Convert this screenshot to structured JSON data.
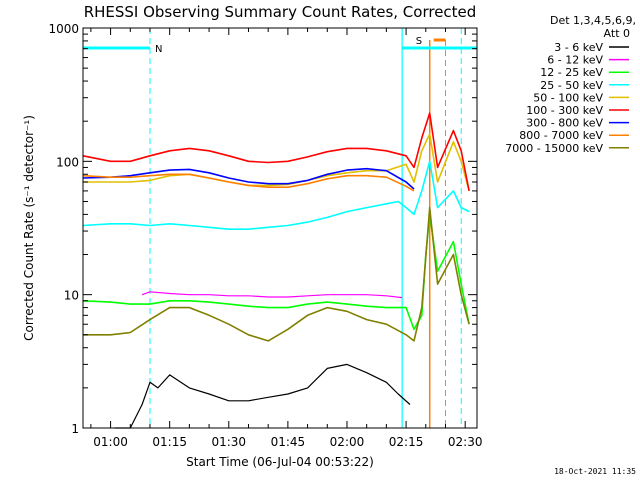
{
  "chart_data": {
    "type": "line",
    "title": "RHESSI Observing Summary Count Rates, Corrected",
    "xlabel": "Start Time (06-Jul-04 00:53:22)",
    "ylabel": "Corrected Count Rate (s⁻¹ detector⁻¹)",
    "yscale": "log",
    "ylim": [
      1,
      1000
    ],
    "xlim": [
      "00:53",
      "02:33"
    ],
    "x_ticks": [
      "01:00",
      "01:15",
      "01:30",
      "01:45",
      "02:00",
      "02:15",
      "02:30"
    ],
    "y_ticks": [
      "1",
      "10",
      "100",
      "1000"
    ],
    "legend_header": [
      "Det 1,3,4,5,6,9,",
      "Att 0"
    ],
    "legend_position": "right",
    "series": [
      {
        "name": "3 - 6 keV",
        "color": "#000000",
        "x": [
          "01:01",
          "01:05",
          "01:08",
          "01:10",
          "01:12",
          "01:15",
          "01:20",
          "01:25",
          "01:30",
          "01:35",
          "01:40",
          "01:45",
          "01:50",
          "01:55",
          "02:00",
          "02:05",
          "02:10",
          "02:13",
          "02:16"
        ],
        "y": [
          1,
          1,
          1.5,
          2.2,
          2.0,
          2.5,
          2.0,
          1.8,
          1.6,
          1.6,
          1.7,
          1.8,
          2.0,
          2.8,
          3.0,
          2.6,
          2.2,
          1.8,
          1.5
        ]
      },
      {
        "name": "6 - 12 keV",
        "color": "#ff00ff",
        "x": [
          "01:08",
          "01:10",
          "01:15",
          "01:20",
          "01:25",
          "01:30",
          "01:35",
          "01:40",
          "01:45",
          "01:50",
          "01:55",
          "02:00",
          "02:05",
          "02:10",
          "02:14"
        ],
        "y": [
          10,
          10.5,
          10.2,
          10,
          10,
          9.8,
          9.8,
          9.6,
          9.6,
          9.8,
          10,
          10,
          10,
          9.8,
          9.5
        ]
      },
      {
        "name": "12 - 25 keV",
        "color": "#00ff00",
        "x": [
          "00:53",
          "01:00",
          "01:05",
          "01:10",
          "01:15",
          "01:20",
          "01:25",
          "01:30",
          "01:35",
          "01:40",
          "01:45",
          "01:50",
          "01:55",
          "02:00",
          "02:05",
          "02:10",
          "02:15",
          "02:17",
          "02:19",
          "02:20",
          "02:21",
          "02:23",
          "02:27",
          "02:29",
          "02:31"
        ],
        "y": [
          9,
          8.8,
          8.5,
          8.5,
          9,
          9,
          8.8,
          8.5,
          8.2,
          8,
          8,
          8.5,
          8.8,
          8.5,
          8.2,
          8,
          8,
          5.5,
          7,
          20,
          40,
          15,
          25,
          12,
          6
        ]
      },
      {
        "name": "25 - 50 keV",
        "color": "#00ffff",
        "x": [
          "00:53",
          "01:00",
          "01:05",
          "01:10",
          "01:15",
          "01:20",
          "01:25",
          "01:30",
          "01:35",
          "01:40",
          "01:45",
          "01:50",
          "01:55",
          "02:00",
          "02:05",
          "02:10",
          "02:13",
          "02:15",
          "02:17",
          "02:19",
          "02:21",
          "02:23",
          "02:27",
          "02:29",
          "02:31"
        ],
        "y": [
          33,
          34,
          34,
          33,
          34,
          33,
          32,
          31,
          31,
          32,
          33,
          35,
          38,
          42,
          45,
          48,
          50,
          45,
          40,
          60,
          100,
          45,
          60,
          45,
          42
        ]
      },
      {
        "name": "50 - 100 keV",
        "color": "#e0c000",
        "x": [
          "00:53",
          "01:00",
          "01:05",
          "01:10",
          "01:15",
          "01:20",
          "01:25",
          "01:30",
          "01:35",
          "01:40",
          "01:45",
          "01:50",
          "01:55",
          "02:00",
          "02:05",
          "02:10",
          "02:15",
          "02:17",
          "02:19",
          "02:21",
          "02:23",
          "02:27",
          "02:29",
          "02:31"
        ],
        "y": [
          70,
          70,
          70,
          72,
          78,
          80,
          75,
          70,
          66,
          66,
          67,
          72,
          78,
          82,
          85,
          85,
          95,
          70,
          120,
          160,
          70,
          140,
          100,
          60
        ]
      },
      {
        "name": "100 - 300 keV",
        "color": "#ff0000",
        "x": [
          "00:53",
          "01:00",
          "01:05",
          "01:10",
          "01:15",
          "01:20",
          "01:25",
          "01:30",
          "01:35",
          "01:40",
          "01:45",
          "01:50",
          "01:55",
          "02:00",
          "02:05",
          "02:10",
          "02:15",
          "02:17",
          "02:19",
          "02:21",
          "02:23",
          "02:27",
          "02:29",
          "02:31"
        ],
        "y": [
          110,
          100,
          100,
          110,
          120,
          125,
          120,
          110,
          100,
          98,
          100,
          108,
          118,
          125,
          125,
          120,
          110,
          90,
          150,
          230,
          90,
          170,
          120,
          60
        ]
      },
      {
        "name": "300 - 800 keV",
        "color": "#0000ff",
        "x": [
          "00:53",
          "01:00",
          "01:05",
          "01:10",
          "01:15",
          "01:20",
          "01:25",
          "01:30",
          "01:35",
          "01:40",
          "01:45",
          "01:50",
          "01:55",
          "02:00",
          "02:05",
          "02:10",
          "02:15",
          "02:17"
        ],
        "y": [
          75,
          76,
          78,
          82,
          86,
          87,
          82,
          75,
          70,
          68,
          68,
          72,
          80,
          86,
          88,
          85,
          70,
          62
        ]
      },
      {
        "name": "800 - 7000 keV",
        "color": "#ff8000",
        "x": [
          "00:53",
          "01:00",
          "01:05",
          "01:10",
          "01:15",
          "01:20",
          "01:25",
          "01:30",
          "01:35",
          "01:40",
          "01:45",
          "01:50",
          "01:55",
          "02:00",
          "02:05",
          "02:10",
          "02:15",
          "02:17"
        ],
        "y": [
          78,
          76,
          76,
          78,
          80,
          80,
          75,
          70,
          66,
          64,
          64,
          68,
          74,
          78,
          78,
          76,
          65,
          60
        ]
      },
      {
        "name": "7000 - 15000 keV",
        "color": "#808000",
        "x": [
          "00:53",
          "01:00",
          "01:05",
          "01:10",
          "01:15",
          "01:20",
          "01:25",
          "01:30",
          "01:35",
          "01:40",
          "01:45",
          "01:50",
          "01:55",
          "02:00",
          "02:05",
          "02:10",
          "02:15",
          "02:17",
          "02:19",
          "02:21",
          "02:23",
          "02:27",
          "02:29",
          "02:31"
        ],
        "y": [
          5,
          5,
          5.2,
          6.5,
          8,
          8,
          7,
          6,
          5,
          4.5,
          5.5,
          7,
          8,
          7.5,
          6.5,
          6,
          5,
          4.5,
          8,
          45,
          12,
          20,
          10,
          6
        ]
      }
    ],
    "markers": {
      "cyan_lines": [
        "01:10",
        "02:14",
        "02:29"
      ],
      "orange_lines": [
        "02:21",
        "02:25"
      ],
      "n_label": "N",
      "s_label": "S"
    },
    "colors": {
      "cyan": "#00ffff",
      "orange": "#ff8000"
    }
  },
  "footer_timestamp": "18-Oct-2021 11:35"
}
